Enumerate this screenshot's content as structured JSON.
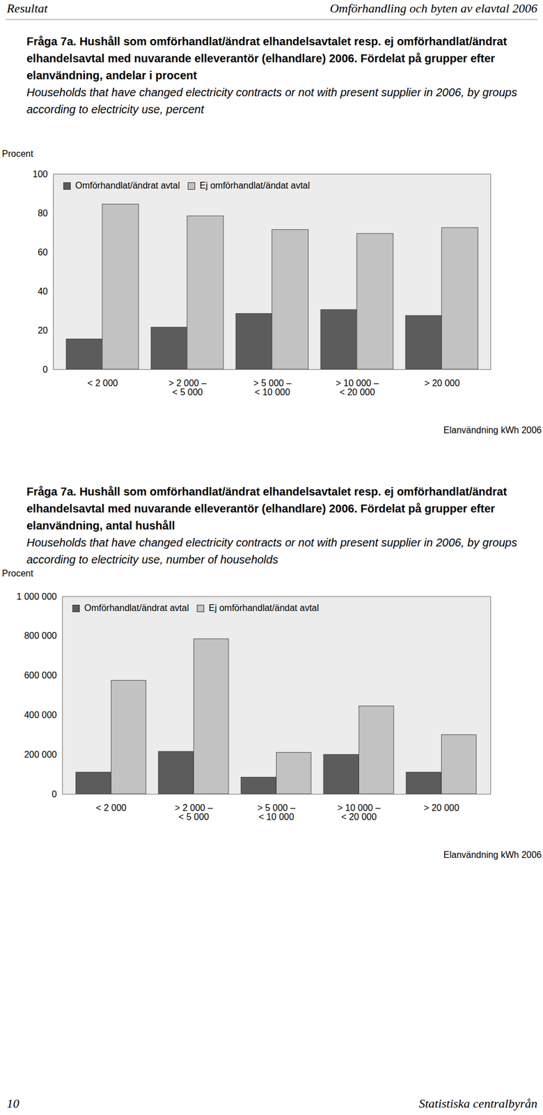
{
  "header": {
    "left": "Resultat",
    "right": "Omförhandling och byten av elavtal 2006"
  },
  "footer": {
    "page": 10,
    "publisher": "Statistiska centralbyrån"
  },
  "chart_data": [
    {
      "type": "bar",
      "title": "Fråga 7a. Hushåll som omförhandlat/ändrat elhandelsavtalet resp. ej omförhandlat/ändrat elhandelsavtal med nuvarande elleverantör (elhandlare) 2006. Fördelat på grupper efter elanvändning, andelar i procent",
      "subtitle": "Households that have changed electricity contracts or not with present supplier in 2006, by groups according to electricity use, percent",
      "ylabel": "Procent",
      "xlabel": "Elanvändning kWh 2006",
      "categories": [
        "< 2 000",
        "> 2 000 –\n< 5 000",
        "> 5 000 –\n< 10 000",
        "> 10 000 –\n< 20 000",
        "> 20 000"
      ],
      "series": [
        {
          "name": "Omförhandlat/ändrat avtal",
          "color": "#5c5c5c",
          "values": [
            15.5,
            21.5,
            28.5,
            30.5,
            27.5
          ]
        },
        {
          "name": "Ej omförhandlat/ändat avtal",
          "color": "#c2c2c2",
          "values": [
            84.5,
            78.5,
            71.5,
            69.5,
            72.5
          ]
        }
      ],
      "ylim": [
        0,
        100
      ],
      "yticks": [
        0,
        20,
        40,
        60,
        80,
        100
      ],
      "legend": "top-left"
    },
    {
      "type": "bar",
      "title": "Fråga 7a. Hushåll som omförhandlat/ändrat elhandelsavtalet resp. ej omförhandlat/ändrat elhandelsavtal med nuvarande elleverantör (elhandlare) 2006. Fördelat på grupper efter elanvändning, antal hushåll",
      "subtitle": "Households that have changed electricity contracts or not with present supplier in 2006, by groups according to electricity use, number of households",
      "ylabel": "Procent",
      "xlabel": "Elanvändning kWh 2006",
      "categories": [
        "< 2 000",
        "> 2 000 –\n< 5 000",
        "> 5 000 –\n< 10 000",
        "> 10 000 –\n< 20 000",
        "> 20 000"
      ],
      "series": [
        {
          "name": "Omförhandlat/ändrat avtal",
          "color": "#5c5c5c",
          "values": [
            110000,
            215000,
            85000,
            200000,
            110000
          ]
        },
        {
          "name": "Ej omförhandlat/ändat avtal",
          "color": "#c2c2c2",
          "values": [
            575000,
            785000,
            210000,
            445000,
            300000
          ]
        }
      ],
      "ylim": [
        0,
        1000000
      ],
      "yticks": [
        0,
        {
          "value": 200000,
          "label": "200 000"
        },
        {
          "value": 400000,
          "label": "400 000"
        },
        {
          "value": 600000,
          "label": "600 000"
        },
        {
          "value": 800000,
          "label": "800 000"
        },
        {
          "value": 1000000,
          "label": "1 000 000"
        }
      ],
      "legend": "top-left"
    }
  ]
}
